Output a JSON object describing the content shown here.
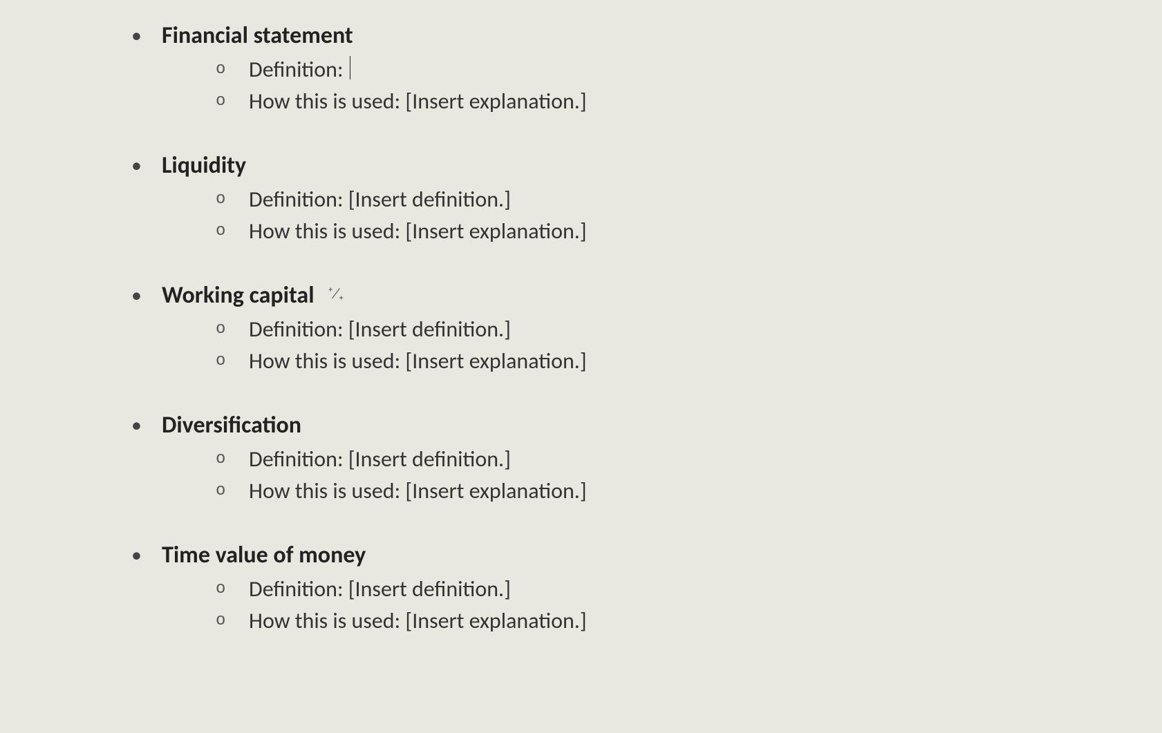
{
  "colors": {
    "background": "#e8e7e0",
    "text": "#2a2a2a",
    "bullet": "#444444",
    "sub_bullet": "#555555"
  },
  "typography": {
    "font_family": "Calibri",
    "term_fontsize_pt": 26,
    "term_fontweight": "bold",
    "body_fontsize_pt": 24,
    "body_fontweight": "normal"
  },
  "labels": {
    "definition_prefix": "Definition:",
    "usage_prefix": "How this is used:",
    "placeholder_definition": "[Insert definition.]",
    "placeholder_usage": "[Insert explanation.]"
  },
  "terms": [
    {
      "title": "Financial statement",
      "definition_value": "",
      "usage_value": "[Insert explanation.]",
      "has_cursor": true
    },
    {
      "title": "Liquidity",
      "definition_value": "[Insert definition.]",
      "usage_value": "[Insert explanation.]"
    },
    {
      "title": "Working capital",
      "definition_value": "[Insert definition.]",
      "usage_value": "[Insert explanation.]",
      "has_paste_icon": true
    },
    {
      "title": "Diversification",
      "definition_value": "[Insert definition.]",
      "usage_value": "[Insert explanation.]"
    },
    {
      "title": "Time value of money",
      "definition_value": "[Insert definition.]",
      "usage_value": "[Insert explanation.]"
    }
  ]
}
